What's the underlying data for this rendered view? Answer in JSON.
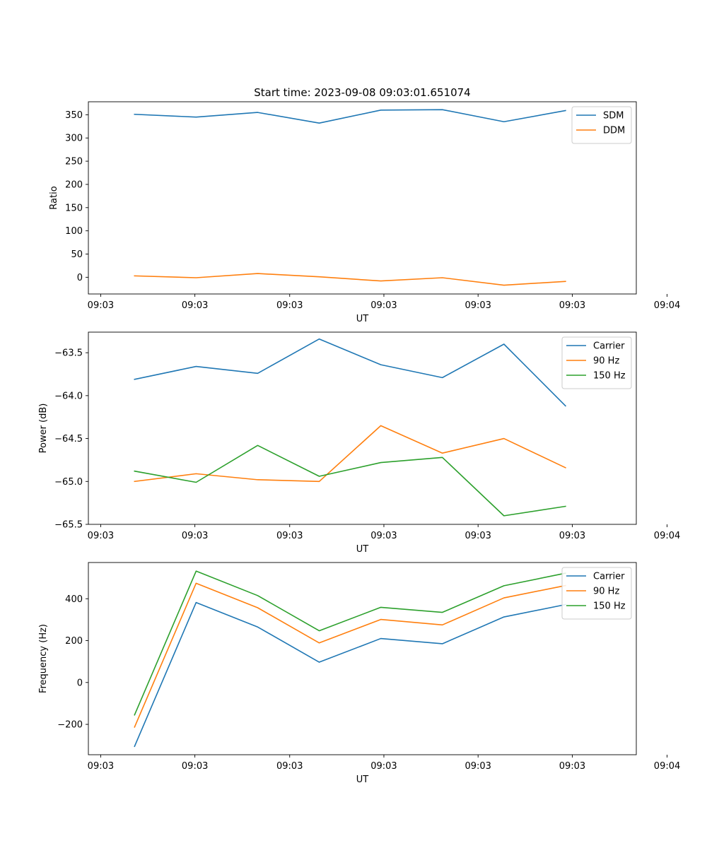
{
  "chart_data": [
    {
      "type": "line",
      "title": "Start time: 2023-09-08 09:03:01.651074",
      "xlabel": "UT",
      "ylabel": "Ratio",
      "x": [
        1,
        2,
        3,
        4,
        5,
        6,
        7,
        8
      ],
      "xlim": [
        0.25,
        9.15
      ],
      "xticks": [
        0.45,
        1.98,
        3.52,
        5.05,
        6.58,
        8.11,
        9.65
      ],
      "xtick_labels": [
        "09:03",
        "09:03",
        "09:03",
        "09:03",
        "09:03",
        "09:03",
        "09:04"
      ],
      "ylim": [
        -36,
        378
      ],
      "yticks": [
        0,
        50,
        100,
        150,
        200,
        250,
        300,
        350
      ],
      "ytick_labels": [
        "0",
        "50",
        "100",
        "150",
        "200",
        "250",
        "300",
        "350"
      ],
      "legend_position": "top-right",
      "series": [
        {
          "name": "SDM",
          "color": "#1f77b4",
          "values": [
            351,
            345,
            355,
            332,
            360,
            361,
            335,
            359
          ]
        },
        {
          "name": "DDM",
          "color": "#ff7f0e",
          "values": [
            3,
            -1,
            8,
            1,
            -8,
            -1,
            -17,
            -9
          ]
        }
      ]
    },
    {
      "type": "line",
      "title": "",
      "xlabel": "UT",
      "ylabel": "Power (dB)",
      "x": [
        1,
        2,
        3,
        4,
        5,
        6,
        7,
        8
      ],
      "xlim": [
        0.25,
        9.15
      ],
      "xticks": [
        0.45,
        1.98,
        3.52,
        5.05,
        6.58,
        8.11,
        9.65
      ],
      "xtick_labels": [
        "09:03",
        "09:03",
        "09:03",
        "09:03",
        "09:03",
        "09:03",
        "09:04"
      ],
      "ylim": [
        -65.5,
        -63.26
      ],
      "yticks": [
        -65.5,
        -65.0,
        -64.5,
        -64.0,
        -63.5
      ],
      "ytick_labels": [
        "−65.5",
        "−65.0",
        "−64.5",
        "−64.0",
        "−63.5"
      ],
      "legend_position": "top-right",
      "series": [
        {
          "name": "Carrier",
          "color": "#1f77b4",
          "values": [
            -63.81,
            -63.66,
            -63.74,
            -63.34,
            -63.64,
            -63.79,
            -63.4,
            -64.12
          ]
        },
        {
          "name": "90 Hz",
          "color": "#ff7f0e",
          "values": [
            -65.0,
            -64.91,
            -64.98,
            -65.0,
            -64.35,
            -64.67,
            -64.5,
            -64.84
          ]
        },
        {
          "name": "150 Hz",
          "color": "#2ca02c",
          "values": [
            -64.88,
            -65.01,
            -64.58,
            -64.94,
            -64.78,
            -64.72,
            -65.4,
            -65.29
          ]
        }
      ]
    },
    {
      "type": "line",
      "title": "",
      "xlabel": "UT",
      "ylabel": "Frequency (Hz)",
      "x": [
        1,
        2,
        3,
        4,
        5,
        6,
        7,
        8
      ],
      "xlim": [
        0.25,
        9.15
      ],
      "xticks": [
        0.45,
        1.98,
        3.52,
        5.05,
        6.58,
        8.11,
        9.65
      ],
      "xtick_labels": [
        "09:03",
        "09:03",
        "09:03",
        "09:03",
        "09:03",
        "09:03",
        "09:04"
      ],
      "ylim": [
        -345,
        573
      ],
      "yticks": [
        -200,
        0,
        200,
        400
      ],
      "ytick_labels": [
        "−200",
        "0",
        "200",
        "400"
      ],
      "legend_position": "top-right",
      "series": [
        {
          "name": "Carrier",
          "color": "#1f77b4",
          "values": [
            -305,
            382,
            265,
            97,
            210,
            185,
            313,
            372
          ]
        },
        {
          "name": "90 Hz",
          "color": "#ff7f0e",
          "values": [
            -213,
            474,
            357,
            189,
            301,
            275,
            404,
            463
          ]
        },
        {
          "name": "150 Hz",
          "color": "#2ca02c",
          "values": [
            -155,
            532,
            415,
            247,
            359,
            335,
            462,
            522
          ]
        }
      ]
    }
  ]
}
